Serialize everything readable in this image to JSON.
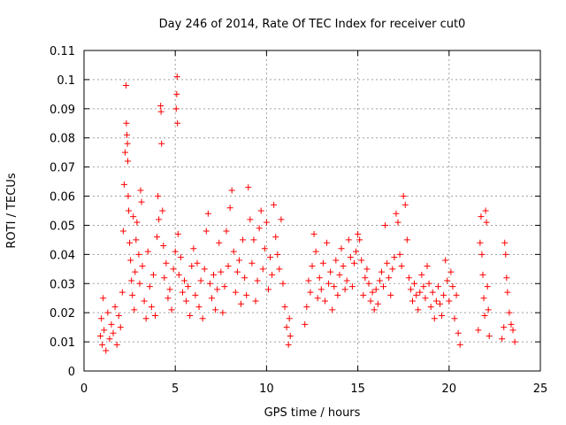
{
  "chart_data": {
    "type": "scatter",
    "title": "Day 246 of 2014, Rate Of TEC Index for receiver cut0",
    "xlabel": "GPS time / hours",
    "ylabel": "ROTI / TECUs",
    "xlim": [
      0,
      25
    ],
    "ylim": [
      0,
      0.11
    ],
    "x_ticks": [
      0,
      5,
      10,
      15,
      20,
      25
    ],
    "x_tick_labels": [
      "0",
      "5",
      "10",
      "15",
      "20",
      "25"
    ],
    "y_ticks": [
      0,
      0.01,
      0.02,
      0.03,
      0.04,
      0.05,
      0.06,
      0.07,
      0.08,
      0.09,
      0.1,
      0.11
    ],
    "y_tick_labels": [
      "0",
      "0.01",
      "0.02",
      "0.03",
      "0.04",
      "0.05",
      "0.06",
      "0.07",
      "0.08",
      "0.09",
      "0.1",
      "0.11"
    ],
    "grid": true,
    "marker": "+",
    "color": "#ff0000",
    "series": [
      {
        "points": [
          [
            0.9,
            0.012
          ],
          [
            0.95,
            0.018
          ],
          [
            1.0,
            0.009
          ],
          [
            1.05,
            0.025
          ],
          [
            1.1,
            0.014
          ],
          [
            1.2,
            0.007
          ],
          [
            1.3,
            0.02
          ],
          [
            1.4,
            0.011
          ],
          [
            1.5,
            0.016
          ],
          [
            1.6,
            0.013
          ],
          [
            1.7,
            0.022
          ],
          [
            1.8,
            0.009
          ],
          [
            1.9,
            0.019
          ],
          [
            2.0,
            0.015
          ],
          [
            2.1,
            0.027
          ],
          [
            2.15,
            0.048
          ],
          [
            2.2,
            0.064
          ],
          [
            2.25,
            0.075
          ],
          [
            2.3,
            0.098
          ],
          [
            2.32,
            0.085
          ],
          [
            2.35,
            0.081
          ],
          [
            2.38,
            0.078
          ],
          [
            2.4,
            0.072
          ],
          [
            2.42,
            0.06
          ],
          [
            2.45,
            0.055
          ],
          [
            2.5,
            0.044
          ],
          [
            2.55,
            0.038
          ],
          [
            2.6,
            0.031
          ],
          [
            2.65,
            0.026
          ],
          [
            2.7,
            0.053
          ],
          [
            2.75,
            0.021
          ],
          [
            2.8,
            0.034
          ],
          [
            2.85,
            0.045
          ],
          [
            2.9,
            0.051
          ],
          [
            3.0,
            0.04
          ],
          [
            3.05,
            0.03
          ],
          [
            3.1,
            0.062
          ],
          [
            3.15,
            0.058
          ],
          [
            3.2,
            0.036
          ],
          [
            3.3,
            0.024
          ],
          [
            3.4,
            0.018
          ],
          [
            3.5,
            0.041
          ],
          [
            3.6,
            0.029
          ],
          [
            3.7,
            0.022
          ],
          [
            3.8,
            0.033
          ],
          [
            3.9,
            0.019
          ],
          [
            4.0,
            0.046
          ],
          [
            4.05,
            0.06
          ],
          [
            4.1,
            0.052
          ],
          [
            4.2,
            0.091
          ],
          [
            4.22,
            0.089
          ],
          [
            4.25,
            0.078
          ],
          [
            4.3,
            0.055
          ],
          [
            4.35,
            0.043
          ],
          [
            4.4,
            0.032
          ],
          [
            4.5,
            0.037
          ],
          [
            4.6,
            0.025
          ],
          [
            4.7,
            0.028
          ],
          [
            4.8,
            0.021
          ],
          [
            4.9,
            0.035
          ],
          [
            5.0,
            0.041
          ],
          [
            5.05,
            0.09
          ],
          [
            5.08,
            0.095
          ],
          [
            5.1,
            0.101
          ],
          [
            5.12,
            0.085
          ],
          [
            5.15,
            0.047
          ],
          [
            5.2,
            0.033
          ],
          [
            5.3,
            0.039
          ],
          [
            5.4,
            0.027
          ],
          [
            5.5,
            0.031
          ],
          [
            5.6,
            0.024
          ],
          [
            5.7,
            0.029
          ],
          [
            5.8,
            0.019
          ],
          [
            5.9,
            0.036
          ],
          [
            6.0,
            0.042
          ],
          [
            6.1,
            0.026
          ],
          [
            6.2,
            0.037
          ],
          [
            6.3,
            0.022
          ],
          [
            6.4,
            0.031
          ],
          [
            6.5,
            0.018
          ],
          [
            6.6,
            0.035
          ],
          [
            6.7,
            0.048
          ],
          [
            6.8,
            0.054
          ],
          [
            6.9,
            0.03
          ],
          [
            7.0,
            0.025
          ],
          [
            7.1,
            0.033
          ],
          [
            7.2,
            0.021
          ],
          [
            7.3,
            0.028
          ],
          [
            7.4,
            0.044
          ],
          [
            7.5,
            0.034
          ],
          [
            7.6,
            0.02
          ],
          [
            7.7,
            0.029
          ],
          [
            7.8,
            0.048
          ],
          [
            7.9,
            0.036
          ],
          [
            8.0,
            0.056
          ],
          [
            8.1,
            0.062
          ],
          [
            8.2,
            0.041
          ],
          [
            8.3,
            0.027
          ],
          [
            8.4,
            0.034
          ],
          [
            8.5,
            0.038
          ],
          [
            8.6,
            0.023
          ],
          [
            8.7,
            0.045
          ],
          [
            8.8,
            0.032
          ],
          [
            8.9,
            0.026
          ],
          [
            9.0,
            0.063
          ],
          [
            9.1,
            0.052
          ],
          [
            9.2,
            0.037
          ],
          [
            9.3,
            0.045
          ],
          [
            9.4,
            0.024
          ],
          [
            9.5,
            0.031
          ],
          [
            9.6,
            0.049
          ],
          [
            9.7,
            0.055
          ],
          [
            9.8,
            0.035
          ],
          [
            9.9,
            0.042
          ],
          [
            10.0,
            0.051
          ],
          [
            10.1,
            0.028
          ],
          [
            10.2,
            0.039
          ],
          [
            10.3,
            0.033
          ],
          [
            10.4,
            0.057
          ],
          [
            10.5,
            0.046
          ],
          [
            10.6,
            0.04
          ],
          [
            10.7,
            0.035
          ],
          [
            10.8,
            0.052
          ],
          [
            10.9,
            0.03
          ],
          [
            11.0,
            0.022
          ],
          [
            11.1,
            0.015
          ],
          [
            11.2,
            0.009
          ],
          [
            11.25,
            0.018
          ],
          [
            11.3,
            0.012
          ],
          [
            12.1,
            0.016
          ],
          [
            12.2,
            0.022
          ],
          [
            12.3,
            0.031
          ],
          [
            12.4,
            0.027
          ],
          [
            12.5,
            0.036
          ],
          [
            12.6,
            0.047
          ],
          [
            12.7,
            0.041
          ],
          [
            12.8,
            0.025
          ],
          [
            12.9,
            0.032
          ],
          [
            13.0,
            0.028
          ],
          [
            13.1,
            0.037
          ],
          [
            13.2,
            0.024
          ],
          [
            13.3,
            0.044
          ],
          [
            13.4,
            0.03
          ],
          [
            13.5,
            0.034
          ],
          [
            13.6,
            0.021
          ],
          [
            13.7,
            0.029
          ],
          [
            13.8,
            0.038
          ],
          [
            13.9,
            0.026
          ],
          [
            14.0,
            0.033
          ],
          [
            14.1,
            0.042
          ],
          [
            14.2,
            0.036
          ],
          [
            14.3,
            0.028
          ],
          [
            14.4,
            0.031
          ],
          [
            14.5,
            0.045
          ],
          [
            14.6,
            0.039
          ],
          [
            14.7,
            0.029
          ],
          [
            14.8,
            0.037
          ],
          [
            14.9,
            0.041
          ],
          [
            15.0,
            0.047
          ],
          [
            15.1,
            0.045
          ],
          [
            15.2,
            0.038
          ],
          [
            15.3,
            0.026
          ],
          [
            15.4,
            0.032
          ],
          [
            15.5,
            0.035
          ],
          [
            15.6,
            0.03
          ],
          [
            15.7,
            0.024
          ],
          [
            15.8,
            0.027
          ],
          [
            15.9,
            0.021
          ],
          [
            16.0,
            0.028
          ],
          [
            16.1,
            0.023
          ],
          [
            16.2,
            0.031
          ],
          [
            16.3,
            0.034
          ],
          [
            16.4,
            0.029
          ],
          [
            16.5,
            0.05
          ],
          [
            16.6,
            0.037
          ],
          [
            16.7,
            0.032
          ],
          [
            16.8,
            0.026
          ],
          [
            16.9,
            0.035
          ],
          [
            17.0,
            0.039
          ],
          [
            17.1,
            0.054
          ],
          [
            17.2,
            0.051
          ],
          [
            17.3,
            0.04
          ],
          [
            17.4,
            0.036
          ],
          [
            17.5,
            0.06
          ],
          [
            17.6,
            0.057
          ],
          [
            17.7,
            0.045
          ],
          [
            17.8,
            0.032
          ],
          [
            17.9,
            0.028
          ],
          [
            18.0,
            0.024
          ],
          [
            18.1,
            0.03
          ],
          [
            18.2,
            0.026
          ],
          [
            18.3,
            0.021
          ],
          [
            18.4,
            0.027
          ],
          [
            18.5,
            0.033
          ],
          [
            18.6,
            0.029
          ],
          [
            18.7,
            0.025
          ],
          [
            18.8,
            0.036
          ],
          [
            18.9,
            0.03
          ],
          [
            19.0,
            0.022
          ],
          [
            19.1,
            0.027
          ],
          [
            19.2,
            0.018
          ],
          [
            19.3,
            0.024
          ],
          [
            19.4,
            0.029
          ],
          [
            19.5,
            0.023
          ],
          [
            19.6,
            0.019
          ],
          [
            19.7,
            0.026
          ],
          [
            19.8,
            0.038
          ],
          [
            19.9,
            0.031
          ],
          [
            20.0,
            0.024
          ],
          [
            20.1,
            0.034
          ],
          [
            20.2,
            0.029
          ],
          [
            20.3,
            0.018
          ],
          [
            20.4,
            0.026
          ],
          [
            20.5,
            0.013
          ],
          [
            20.6,
            0.009
          ],
          [
            21.6,
            0.014
          ],
          [
            21.7,
            0.044
          ],
          [
            21.75,
            0.053
          ],
          [
            21.8,
            0.04
          ],
          [
            21.85,
            0.033
          ],
          [
            21.9,
            0.025
          ],
          [
            21.95,
            0.019
          ],
          [
            22.0,
            0.055
          ],
          [
            22.05,
            0.051
          ],
          [
            22.1,
            0.029
          ],
          [
            22.15,
            0.021
          ],
          [
            22.2,
            0.012
          ],
          [
            22.9,
            0.011
          ],
          [
            23.0,
            0.015
          ],
          [
            23.05,
            0.044
          ],
          [
            23.1,
            0.04
          ],
          [
            23.15,
            0.032
          ],
          [
            23.2,
            0.027
          ],
          [
            23.3,
            0.02
          ],
          [
            23.4,
            0.016
          ],
          [
            23.5,
            0.014
          ],
          [
            23.6,
            0.01
          ]
        ]
      }
    ]
  }
}
